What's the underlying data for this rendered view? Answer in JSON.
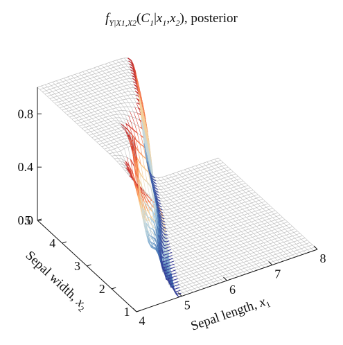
{
  "title": {
    "f": "f",
    "sub1": "Y|X1,X2",
    "open": "(",
    "C": "C",
    "c_sub": "1",
    "bar": "|",
    "x1": "x",
    "x1_sub": "1",
    "comma": ",",
    "x2": "x",
    "x2_sub": "2",
    "close": "), posterior"
  },
  "chart_data": {
    "type": "surface",
    "xlabel": "Sepal length, x1",
    "xlabel_parts": {
      "text": "Sepal length, ",
      "var": "x",
      "sub": "1"
    },
    "ylabel": "Sepal width, x2",
    "ylabel_parts": {
      "text": "Sepal width, ",
      "var": "x",
      "sub": "2"
    },
    "xlim": [
      4,
      8
    ],
    "ylim": [
      1,
      5
    ],
    "zlim": [
      0,
      1
    ],
    "x_ticks": [
      "4",
      "5",
      "6",
      "7",
      "8"
    ],
    "y_ticks": [
      "1",
      "2",
      "3",
      "4",
      "5"
    ],
    "z_ticks": [
      "0.0",
      "0.4",
      "0.8"
    ],
    "grid": false,
    "colormap": "RdYlBu_r",
    "surface": {
      "description_free": true,
      "boundary_x_at_y1": 4.7,
      "boundary_x_at_y5": 6.3,
      "plateau_high": 1.0,
      "plateau_low": 0.0,
      "ridge_y": 2.4,
      "ridge_x": 4.55
    }
  }
}
